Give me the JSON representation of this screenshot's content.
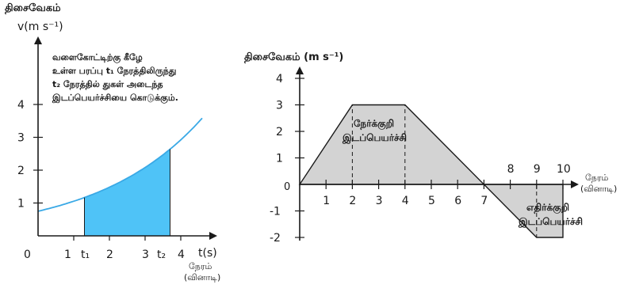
{
  "colors": {
    "curve": "#3aa9e6",
    "area_fill": "#4fc3f7",
    "trap_fill": "#d3d3d3",
    "axis": "#1a1a1a",
    "background": "#ffffff"
  },
  "left_graph": {
    "top_label": "திசைவேகம்",
    "y_label": "v(m s⁻¹)",
    "x_label": "t(s)",
    "x_unit_line1": "நேரம்",
    "x_unit_line2": "(வினாடி)",
    "annotation_lines": [
      "வளைகோட்டிற்கு கீழே",
      "உள்ள பரப்பு t₁ நேரத்திலிருந்து",
      "t₂ நேரத்தில் துகள் அடைந்த",
      "இடப்பெயர்ச்சியை கொடுக்கும்."
    ],
    "t1_label": "t₁",
    "t2_label": "t₂",
    "x_ticks": [
      "0",
      "1",
      "2",
      "3",
      "4"
    ],
    "y_ticks": [
      "1",
      "2",
      "3",
      "4"
    ]
  },
  "chart_data": [
    {
      "type": "line",
      "title": "",
      "xlabel": "t(s)",
      "ylabel": "v(m s⁻¹)",
      "xlim": [
        0,
        4.7
      ],
      "ylim": [
        0,
        5.2
      ],
      "curve_points": [
        {
          "x": 0,
          "y": 0.75
        },
        {
          "x": 1,
          "y": 1.15
        },
        {
          "x": 2,
          "y": 1.75
        },
        {
          "x": 3,
          "y": 2.55
        },
        {
          "x": 4,
          "y": 3.6
        },
        {
          "x": 4.6,
          "y": 4.4
        }
      ],
      "shaded_interval": {
        "t1": 1.3,
        "t2": 3.7
      }
    },
    {
      "type": "line",
      "title": "",
      "xlabel": "நேரம் (வினாடி)",
      "ylabel": "திசைவேகம் (m s⁻¹)",
      "xlim": [
        0,
        10
      ],
      "ylim": [
        -2,
        4
      ],
      "x": [
        0,
        2,
        4,
        7,
        8,
        9,
        10
      ],
      "y": [
        0,
        3,
        3,
        0,
        -1,
        -2,
        -2
      ],
      "x_ticks": [
        "1",
        "2",
        "3",
        "4",
        "5",
        "6",
        "7",
        "8",
        "9",
        "10"
      ],
      "y_ticks": [
        "-2",
        "-1",
        "0",
        "1",
        "2",
        "3",
        "4"
      ],
      "origin_label": "0",
      "positive_area_label_line1": "நேர்க்குறி",
      "positive_area_label_line2": "இடப்பெயர்ச்சி",
      "negative_area_label_line1": "எதிர்க்குறி",
      "negative_area_label_line2": "இடப்பெயர்ச்சி",
      "x_unit_line1": "நேரம்",
      "x_unit_line2": "(வினாடி)"
    }
  ]
}
